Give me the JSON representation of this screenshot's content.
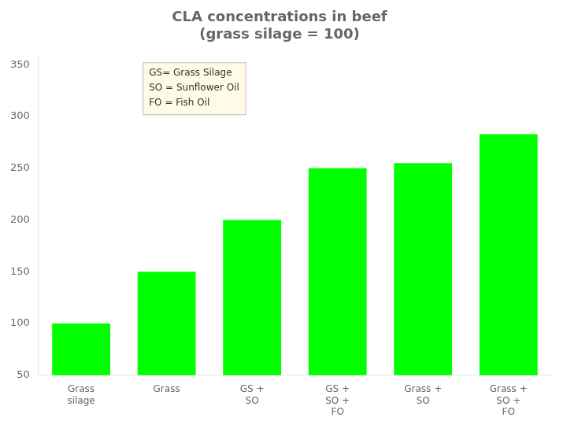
{
  "chart_data": {
    "type": "bar",
    "title": "CLA concentrations in beef\n(grass silage = 100)",
    "categories": [
      "Grass\nsilage",
      "Grass",
      "GS +\nSO",
      "GS +\nSO +\nFO",
      "Grass +\nSO",
      "Grass +\nSO +\nFO"
    ],
    "values": [
      100,
      150,
      200,
      250,
      255,
      283
    ],
    "color": "#00ff00",
    "ylim": [
      50,
      360
    ],
    "yticks": [
      50,
      100,
      150,
      200,
      250,
      300,
      350
    ],
    "grid": false,
    "annotation": "GS= Grass Silage\nSO = Sunflower Oil\nFO = Fish Oil"
  }
}
